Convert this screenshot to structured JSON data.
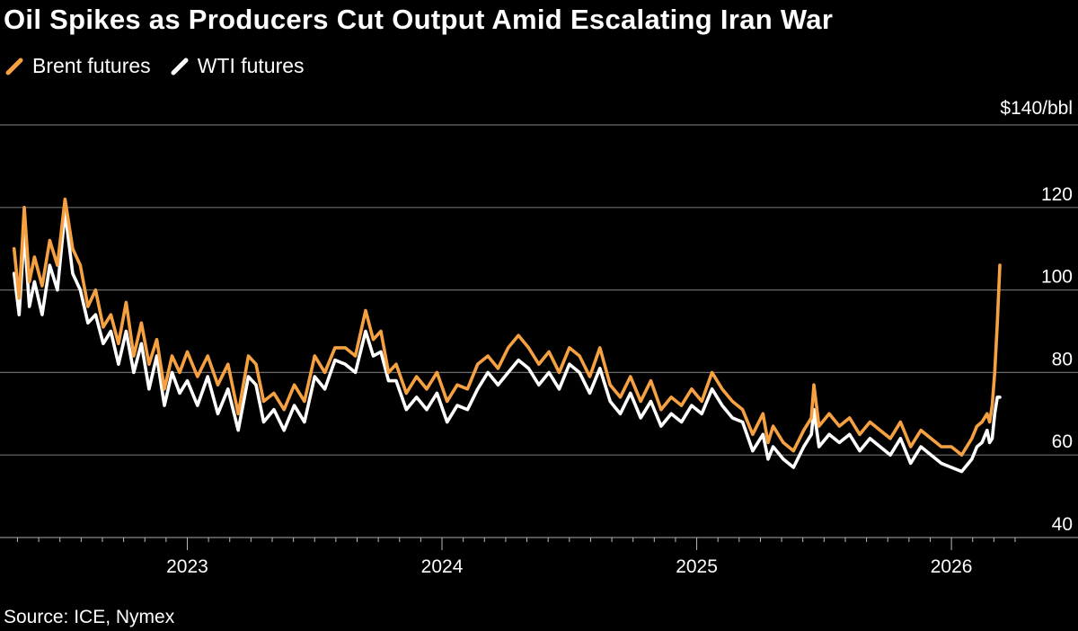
{
  "chart_data": {
    "type": "line",
    "title": "Oil Spikes as Producers Cut Output Amid Escalating Iran War",
    "legend": [
      {
        "name": "Brent futures",
        "color": "#f5a142"
      },
      {
        "name": "WTI futures",
        "color": "#ffffff"
      }
    ],
    "source": "Source: ICE, Nymex",
    "y_unit_label": "$140/bbl",
    "y_ticks": [
      40,
      60,
      80,
      100,
      120,
      140
    ],
    "y_tick_labels": [
      "40",
      "60",
      "80",
      "100",
      "120",
      "$140/bbl"
    ],
    "ylim": [
      40,
      140
    ],
    "x_ticks": [
      2023,
      2024,
      2025,
      2026
    ],
    "x_tick_labels": [
      "2023",
      "2024",
      "2025",
      "2026"
    ],
    "xlim": [
      2022.3,
      2026.25
    ],
    "grid": true,
    "series": [
      {
        "name": "Brent futures",
        "color": "#f5a142",
        "x": [
          2022.32,
          2022.34,
          2022.36,
          2022.38,
          2022.4,
          2022.43,
          2022.46,
          2022.49,
          2022.52,
          2022.55,
          2022.58,
          2022.61,
          2022.64,
          2022.67,
          2022.7,
          2022.73,
          2022.76,
          2022.79,
          2022.82,
          2022.85,
          2022.88,
          2022.91,
          2022.94,
          2022.97,
          2023.0,
          2023.04,
          2023.08,
          2023.12,
          2023.16,
          2023.2,
          2023.24,
          2023.27,
          2023.3,
          2023.34,
          2023.38,
          2023.42,
          2023.46,
          2023.5,
          2023.54,
          2023.58,
          2023.62,
          2023.66,
          2023.7,
          2023.73,
          2023.76,
          2023.79,
          2023.82,
          2023.86,
          2023.9,
          2023.94,
          2023.98,
          2024.02,
          2024.06,
          2024.1,
          2024.14,
          2024.18,
          2024.22,
          2024.26,
          2024.3,
          2024.34,
          2024.38,
          2024.42,
          2024.46,
          2024.5,
          2024.54,
          2024.58,
          2024.62,
          2024.66,
          2024.7,
          2024.74,
          2024.78,
          2024.82,
          2024.86,
          2024.9,
          2024.94,
          2024.98,
          2025.02,
          2025.06,
          2025.1,
          2025.14,
          2025.18,
          2025.22,
          2025.26,
          2025.28,
          2025.3,
          2025.34,
          2025.38,
          2025.42,
          2025.45,
          2025.46,
          2025.48,
          2025.52,
          2025.56,
          2025.6,
          2025.64,
          2025.68,
          2025.72,
          2025.76,
          2025.8,
          2025.84,
          2025.88,
          2025.92,
          2025.96,
          2026.0,
          2026.04,
          2026.08,
          2026.1,
          2026.12,
          2026.14,
          2026.15,
          2026.16,
          2026.17,
          2026.18,
          2026.19
        ],
        "values": [
          110,
          98,
          120,
          102,
          108,
          101,
          112,
          106,
          122,
          110,
          106,
          96,
          100,
          91,
          94,
          87,
          97,
          84,
          92,
          82,
          88,
          76,
          84,
          80,
          85,
          79,
          84,
          77,
          82,
          70,
          84,
          82,
          73,
          75,
          71,
          77,
          73,
          84,
          80,
          86,
          86,
          84,
          95,
          88,
          90,
          80,
          82,
          75,
          79,
          76,
          80,
          73,
          77,
          76,
          82,
          84,
          81,
          86,
          89,
          86,
          82,
          85,
          80,
          86,
          84,
          79,
          86,
          77,
          74,
          79,
          73,
          78,
          71,
          74,
          72,
          76,
          73,
          80,
          76,
          73,
          71,
          65,
          70,
          63,
          67,
          63,
          61,
          66,
          69,
          77,
          67,
          70,
          67,
          69,
          65,
          68,
          66,
          64,
          68,
          62,
          66,
          64,
          62,
          62,
          60,
          64,
          67,
          68,
          70,
          68,
          72,
          80,
          92,
          106
        ]
      },
      {
        "name": "WTI futures",
        "color": "#ffffff",
        "x": [
          2022.32,
          2022.34,
          2022.36,
          2022.38,
          2022.4,
          2022.43,
          2022.46,
          2022.49,
          2022.52,
          2022.55,
          2022.58,
          2022.61,
          2022.64,
          2022.67,
          2022.7,
          2022.73,
          2022.76,
          2022.79,
          2022.82,
          2022.85,
          2022.88,
          2022.91,
          2022.94,
          2022.97,
          2023.0,
          2023.04,
          2023.08,
          2023.12,
          2023.16,
          2023.2,
          2023.24,
          2023.27,
          2023.3,
          2023.34,
          2023.38,
          2023.42,
          2023.46,
          2023.5,
          2023.54,
          2023.58,
          2023.62,
          2023.66,
          2023.7,
          2023.73,
          2023.76,
          2023.79,
          2023.82,
          2023.86,
          2023.9,
          2023.94,
          2023.98,
          2024.02,
          2024.06,
          2024.1,
          2024.14,
          2024.18,
          2024.22,
          2024.26,
          2024.3,
          2024.34,
          2024.38,
          2024.42,
          2024.46,
          2024.5,
          2024.54,
          2024.58,
          2024.62,
          2024.66,
          2024.7,
          2024.74,
          2024.78,
          2024.82,
          2024.86,
          2024.9,
          2024.94,
          2024.98,
          2025.02,
          2025.06,
          2025.1,
          2025.14,
          2025.18,
          2025.22,
          2025.26,
          2025.28,
          2025.3,
          2025.34,
          2025.38,
          2025.42,
          2025.45,
          2025.46,
          2025.48,
          2025.52,
          2025.56,
          2025.6,
          2025.64,
          2025.68,
          2025.72,
          2025.76,
          2025.8,
          2025.84,
          2025.88,
          2025.92,
          2025.96,
          2026.0,
          2026.04,
          2026.08,
          2026.1,
          2026.12,
          2026.14,
          2026.15,
          2026.16,
          2026.17,
          2026.18,
          2026.19
        ],
        "values": [
          104,
          94,
          114,
          96,
          102,
          94,
          106,
          100,
          119,
          104,
          100,
          92,
          94,
          87,
          90,
          82,
          90,
          80,
          87,
          76,
          84,
          72,
          80,
          75,
          78,
          72,
          79,
          70,
          76,
          66,
          79,
          77,
          68,
          71,
          66,
          72,
          68,
          79,
          76,
          83,
          82,
          80,
          90,
          84,
          85,
          78,
          78,
          71,
          74,
          71,
          75,
          68,
          72,
          71,
          76,
          80,
          77,
          80,
          83,
          81,
          77,
          80,
          76,
          82,
          80,
          75,
          81,
          73,
          70,
          75,
          69,
          73,
          67,
          70,
          68,
          72,
          70,
          76,
          72,
          69,
          68,
          61,
          65,
          59,
          62,
          59,
          57,
          62,
          65,
          71,
          62,
          65,
          63,
          65,
          61,
          64,
          62,
          60,
          64,
          58,
          62,
          60,
          58,
          57,
          56,
          59,
          62,
          63,
          66,
          63,
          64,
          70,
          74,
          74
        ]
      }
    ]
  }
}
